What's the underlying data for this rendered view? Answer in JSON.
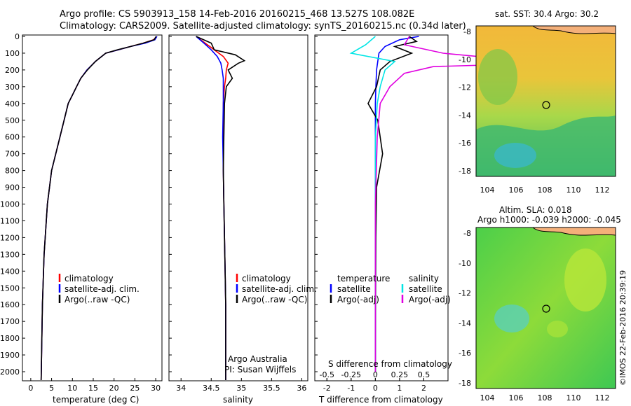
{
  "header": {
    "line1": "Argo profile: CS 5903913_158 14-Feb-2016 20160215_468 13.527S 108.082E",
    "line2": "Climatology: CARS2009. Satellite-adjusted climatology: synTS_20160215.nc (0.34d later)"
  },
  "depth_ticks": [
    0,
    100,
    200,
    300,
    400,
    500,
    600,
    700,
    800,
    900,
    1000,
    1100,
    1200,
    1300,
    1400,
    1500,
    1600,
    1700,
    1800,
    1900,
    2000
  ],
  "colors": {
    "climatology": "#ff0000",
    "satellite": "#0000ff",
    "argo": "#000000",
    "sal_satellite": "#00e5e5",
    "sal_argo": "#e000e0"
  },
  "credits": {
    "line1": "Argo Australia",
    "line2": "PI: Susan Wijffels",
    "timestamp": "©IMOS 22-Feb-2016 20:39:19"
  },
  "panels": {
    "temperature": {
      "xlabel": "temperature (deg C)",
      "ticks": [
        "0",
        "5",
        "10",
        "15",
        "20",
        "25",
        "30"
      ],
      "legend": [
        "climatology",
        "satellite-adj. clim.",
        "Argo(..raw -QC)"
      ]
    },
    "salinity": {
      "xlabel": "salinity",
      "ticks": [
        "34",
        "34.5",
        "35",
        "35.5",
        "36"
      ],
      "legend": [
        "climatology",
        "satellite-adj. clim.",
        "Argo(..raw -QC)"
      ]
    },
    "difference": {
      "xlabel": "T difference from climatology",
      "top_label": "S difference from climatology",
      "ticks_t": [
        "-2",
        "-1",
        "0",
        "1",
        "2"
      ],
      "ticks_s": [
        "-0.5",
        "-0.25",
        "0",
        "0.25",
        "0.5"
      ],
      "legend_t_head": "temperature",
      "legend_s_head": "salinity",
      "legend_t": [
        "satellite",
        "Argo(-adj)"
      ],
      "legend_s": [
        "satellite",
        "Argo(-adj)"
      ]
    },
    "sst_map": {
      "title": "sat. SST: 30.4 Argo: 30.2",
      "lat_ticks": [
        "-8",
        "-10",
        "-12",
        "-14",
        "-16",
        "-18"
      ],
      "lon_ticks": [
        "104",
        "106",
        "108",
        "110",
        "112"
      ]
    },
    "sla_map": {
      "title_line1": "Altim. SLA: 0.018",
      "title_line2": "Argo h1000: -0.039 h2000: -0.045",
      "lat_ticks": [
        "-8",
        "-10",
        "-12",
        "-14",
        "-16",
        "-18"
      ],
      "lon_ticks": [
        "104",
        "106",
        "108",
        "110",
        "112"
      ]
    }
  },
  "chart_data": [
    {
      "type": "line",
      "xlabel": "temperature (deg C)",
      "ylabel": "",
      "xlim": [
        -2,
        31.5
      ],
      "ylim": [
        2100,
        0
      ],
      "series": [
        {
          "name": "climatology",
          "x": [
            30.2,
            29.5,
            27,
            24,
            21,
            18,
            15.5,
            13.5,
            12,
            11,
            10,
            9,
            8,
            7,
            5,
            4,
            3.2,
            2.8,
            2.6,
            2.5
          ],
          "y": [
            0,
            20,
            40,
            60,
            80,
            100,
            150,
            200,
            250,
            300,
            350,
            400,
            500,
            600,
            800,
            1000,
            1300,
            1600,
            1900,
            2050
          ]
        },
        {
          "name": "satellite-adj. clim.",
          "x": [
            30.3,
            29.8,
            27.5,
            24,
            21,
            18,
            15.5,
            13.5,
            12,
            11,
            10,
            9,
            8,
            7,
            5,
            4,
            3.2,
            2.8,
            2.6,
            2.5
          ],
          "y": [
            0,
            20,
            40,
            60,
            80,
            100,
            150,
            200,
            250,
            300,
            350,
            400,
            500,
            600,
            800,
            1000,
            1300,
            1600,
            1900,
            2050
          ]
        },
        {
          "name": "Argo(..raw -QC)",
          "x": [
            30.1,
            29.6,
            27,
            24,
            20.8,
            18,
            15.5,
            13.6,
            12,
            11,
            10,
            9,
            8,
            7,
            5,
            4,
            3.2,
            2.8,
            2.6,
            2.5
          ],
          "y": [
            0,
            20,
            40,
            60,
            80,
            100,
            150,
            200,
            250,
            300,
            350,
            400,
            500,
            600,
            800,
            1000,
            1300,
            1600,
            1900,
            2050
          ]
        }
      ]
    },
    {
      "type": "line",
      "xlabel": "salinity",
      "ylabel": "",
      "xlim": [
        33.8,
        36.1
      ],
      "ylim": [
        2100,
        0
      ],
      "series": [
        {
          "name": "climatology",
          "x": [
            34.25,
            34.4,
            34.55,
            34.7,
            34.78,
            34.75,
            34.74,
            34.72,
            34.7,
            34.7,
            34.7,
            34.71,
            34.72,
            34.73,
            34.74,
            34.74,
            34.74
          ],
          "y": [
            0,
            40,
            80,
            120,
            160,
            200,
            250,
            300,
            400,
            600,
            800,
            1000,
            1200,
            1400,
            1600,
            1800,
            2050
          ]
        },
        {
          "name": "satellite-adj. clim.",
          "x": [
            34.25,
            34.38,
            34.5,
            34.6,
            34.66,
            34.68,
            34.7,
            34.7,
            34.7,
            34.69,
            34.7,
            34.71,
            34.72,
            34.73,
            34.74,
            34.74,
            34.74
          ],
          "y": [
            0,
            40,
            80,
            120,
            160,
            200,
            250,
            300,
            400,
            600,
            800,
            1000,
            1200,
            1400,
            1600,
            1800,
            2050
          ]
        },
        {
          "name": "Argo(..raw -QC)",
          "x": [
            34.25,
            34.5,
            34.55,
            34.9,
            35.05,
            34.95,
            34.78,
            34.85,
            34.75,
            34.72,
            34.71,
            34.7,
            34.71,
            34.72,
            34.73,
            34.74,
            34.74,
            34.74
          ],
          "y": [
            0,
            40,
            80,
            110,
            145,
            160,
            200,
            250,
            300,
            400,
            600,
            800,
            1000,
            1200,
            1400,
            1600,
            1800,
            2050
          ]
        }
      ]
    },
    {
      "type": "line",
      "xlabel": "T difference from climatology",
      "ylabel": "",
      "xlim": [
        -2.5,
        3
      ],
      "ylim": [
        2100,
        0
      ],
      "series": [
        {
          "name": "temperature satellite",
          "x": [
            1.8,
            1.0,
            0.4,
            0.15,
            0.1,
            0.05,
            0.02,
            0,
            0,
            0,
            0,
            0
          ],
          "y": [
            0,
            20,
            60,
            100,
            150,
            200,
            300,
            400,
            600,
            1000,
            1500,
            2000
          ]
        },
        {
          "name": "temperature Argo(-adj)",
          "x": [
            1.4,
            1.7,
            0.8,
            1.5,
            0.6,
            0.2,
            0.05,
            -0.3,
            0.1,
            0.3,
            0.05,
            0.02,
            0.01,
            0
          ],
          "y": [
            0,
            30,
            60,
            100,
            150,
            200,
            300,
            400,
            500,
            700,
            900,
            1200,
            1600,
            2000
          ]
        },
        {
          "name": "salinity satellite",
          "x": [
            0,
            -0.1,
            -0.25,
            0.2,
            0.1,
            0.05,
            0.02,
            0,
            0,
            0
          ],
          "y": [
            0,
            50,
            100,
            150,
            200,
            300,
            400,
            600,
            1000,
            2000
          ]
        },
        {
          "name": "salinity Argo(-adj)",
          "x": [
            0.35,
            0.3,
            0.7,
            1.8,
            0.6,
            0.3,
            0.15,
            0.05,
            0.02,
            0,
            0
          ],
          "y": [
            0,
            50,
            100,
            160,
            180,
            220,
            300,
            400,
            600,
            1000,
            2000
          ]
        }
      ]
    }
  ]
}
